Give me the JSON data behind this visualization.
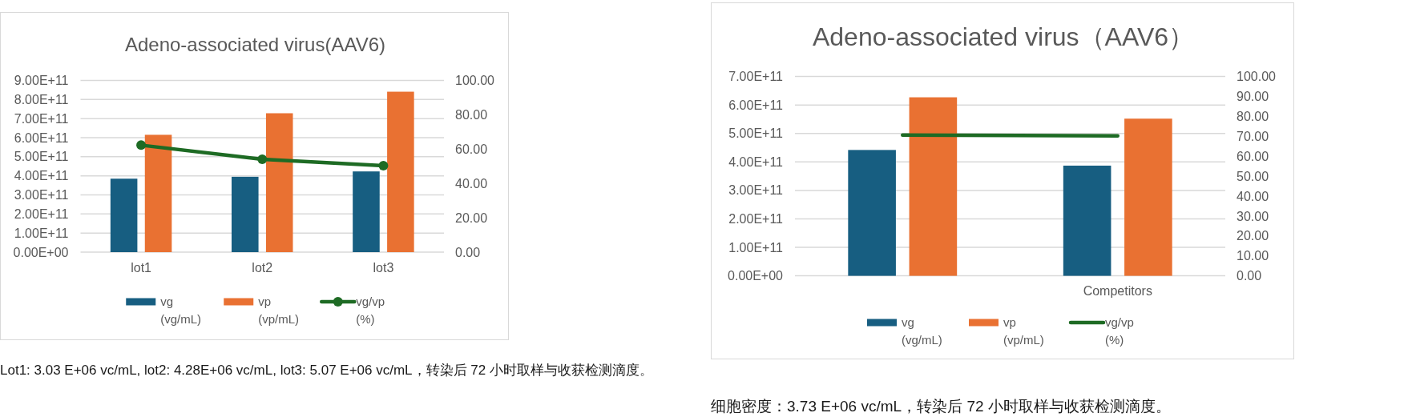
{
  "chart_data": [
    {
      "type": "bar",
      "title": "Adeno-associated virus(AAV6)",
      "categories": [
        "lot1",
        "lot2",
        "lot3"
      ],
      "series": [
        {
          "name": "vg (vg/mL)",
          "color": "#175e81",
          "values": [
            385000000000.0,
            395000000000.0,
            423000000000.0
          ]
        },
        {
          "name": "vp (vp/mL)",
          "color": "#e97132",
          "values": [
            615000000000.0,
            728000000000.0,
            841000000000.0
          ]
        },
        {
          "name": "vg/vp (%)",
          "type": "line",
          "axis": "y2",
          "color": "#1e6b24",
          "marker": "circle",
          "values": [
            62.3,
            54.1,
            50.4
          ]
        }
      ],
      "ylim": [
        0,
        900000000000.0
      ],
      "yticks": [
        {
          "value": 0,
          "label": "0.00E+00"
        },
        {
          "value": 100000000000.0,
          "label": "1.00E+11"
        },
        {
          "value": 200000000000.0,
          "label": "2.00E+11"
        },
        {
          "value": 300000000000.0,
          "label": "3.00E+11"
        },
        {
          "value": 400000000000.0,
          "label": "4.00E+11"
        },
        {
          "value": 500000000000.0,
          "label": "5.00E+11"
        },
        {
          "value": 600000000000.0,
          "label": "6.00E+11"
        },
        {
          "value": 700000000000.0,
          "label": "7.00E+11"
        },
        {
          "value": 800000000000.0,
          "label": "8.00E+11"
        },
        {
          "value": 900000000000.0,
          "label": "9.00E+11"
        }
      ],
      "y2lim": [
        0,
        100
      ],
      "y2ticks": [
        {
          "value": 0,
          "label": "0.00"
        },
        {
          "value": 20,
          "label": "20.00"
        },
        {
          "value": 40,
          "label": "40.00"
        },
        {
          "value": 60,
          "label": "60.00"
        },
        {
          "value": 80,
          "label": "80.00"
        },
        {
          "value": 100,
          "label": "100.00"
        }
      ],
      "grid": "y",
      "legend": "bottom",
      "annotations": [
        "Lot1: 3.03 E+06 vc/mL, lot2: 4.28E+06 vc/mL, lot3: 5.07 E+06 vc/mL，转染后 72 小时取样与收获检测滴度。"
      ]
    },
    {
      "type": "bar",
      "title": "Adeno-associated virus（AAV6）",
      "categories": [
        null,
        "Competitors"
      ],
      "series": [
        {
          "name": "vg (vg/mL)",
          "color": "#175e81",
          "values": [
            442000000000.0,
            387000000000.0
          ]
        },
        {
          "name": "vp (vp/mL)",
          "color": "#e97132",
          "values": [
            627000000000.0,
            552000000000.0
          ]
        },
        {
          "name": "vg/vp (%)",
          "type": "line",
          "axis": "y2",
          "color": "#1e6b24",
          "values": [
            70.6,
            70.2
          ]
        }
      ],
      "ylim": [
        0,
        700000000000.0
      ],
      "yticks": [
        {
          "value": 0,
          "label": "0.00E+00"
        },
        {
          "value": 100000000000.0,
          "label": "1.00E+11"
        },
        {
          "value": 200000000000.0,
          "label": "2.00E+11"
        },
        {
          "value": 300000000000.0,
          "label": "3.00E+11"
        },
        {
          "value": 400000000000.0,
          "label": "4.00E+11"
        },
        {
          "value": 500000000000.0,
          "label": "5.00E+11"
        },
        {
          "value": 600000000000.0,
          "label": "6.00E+11"
        },
        {
          "value": 700000000000.0,
          "label": "7.00E+11"
        }
      ],
      "y2lim": [
        0,
        100
      ],
      "y2ticks": [
        {
          "value": 0,
          "label": "0.00"
        },
        {
          "value": 10,
          "label": "10.00"
        },
        {
          "value": 20,
          "label": "20.00"
        },
        {
          "value": 30,
          "label": "30.00"
        },
        {
          "value": 40,
          "label": "40.00"
        },
        {
          "value": 50,
          "label": "50.00"
        },
        {
          "value": 60,
          "label": "60.00"
        },
        {
          "value": 70,
          "label": "70.00"
        },
        {
          "value": 80,
          "label": "80.00"
        },
        {
          "value": 90,
          "label": "90.00"
        },
        {
          "value": 100,
          "label": "100.00"
        }
      ],
      "grid": "y",
      "legend": "bottom",
      "annotations": [
        "细胞密度：3.73 E+06 vc/mL，转染后 72 小时取样与收获检测滴度。"
      ]
    }
  ]
}
